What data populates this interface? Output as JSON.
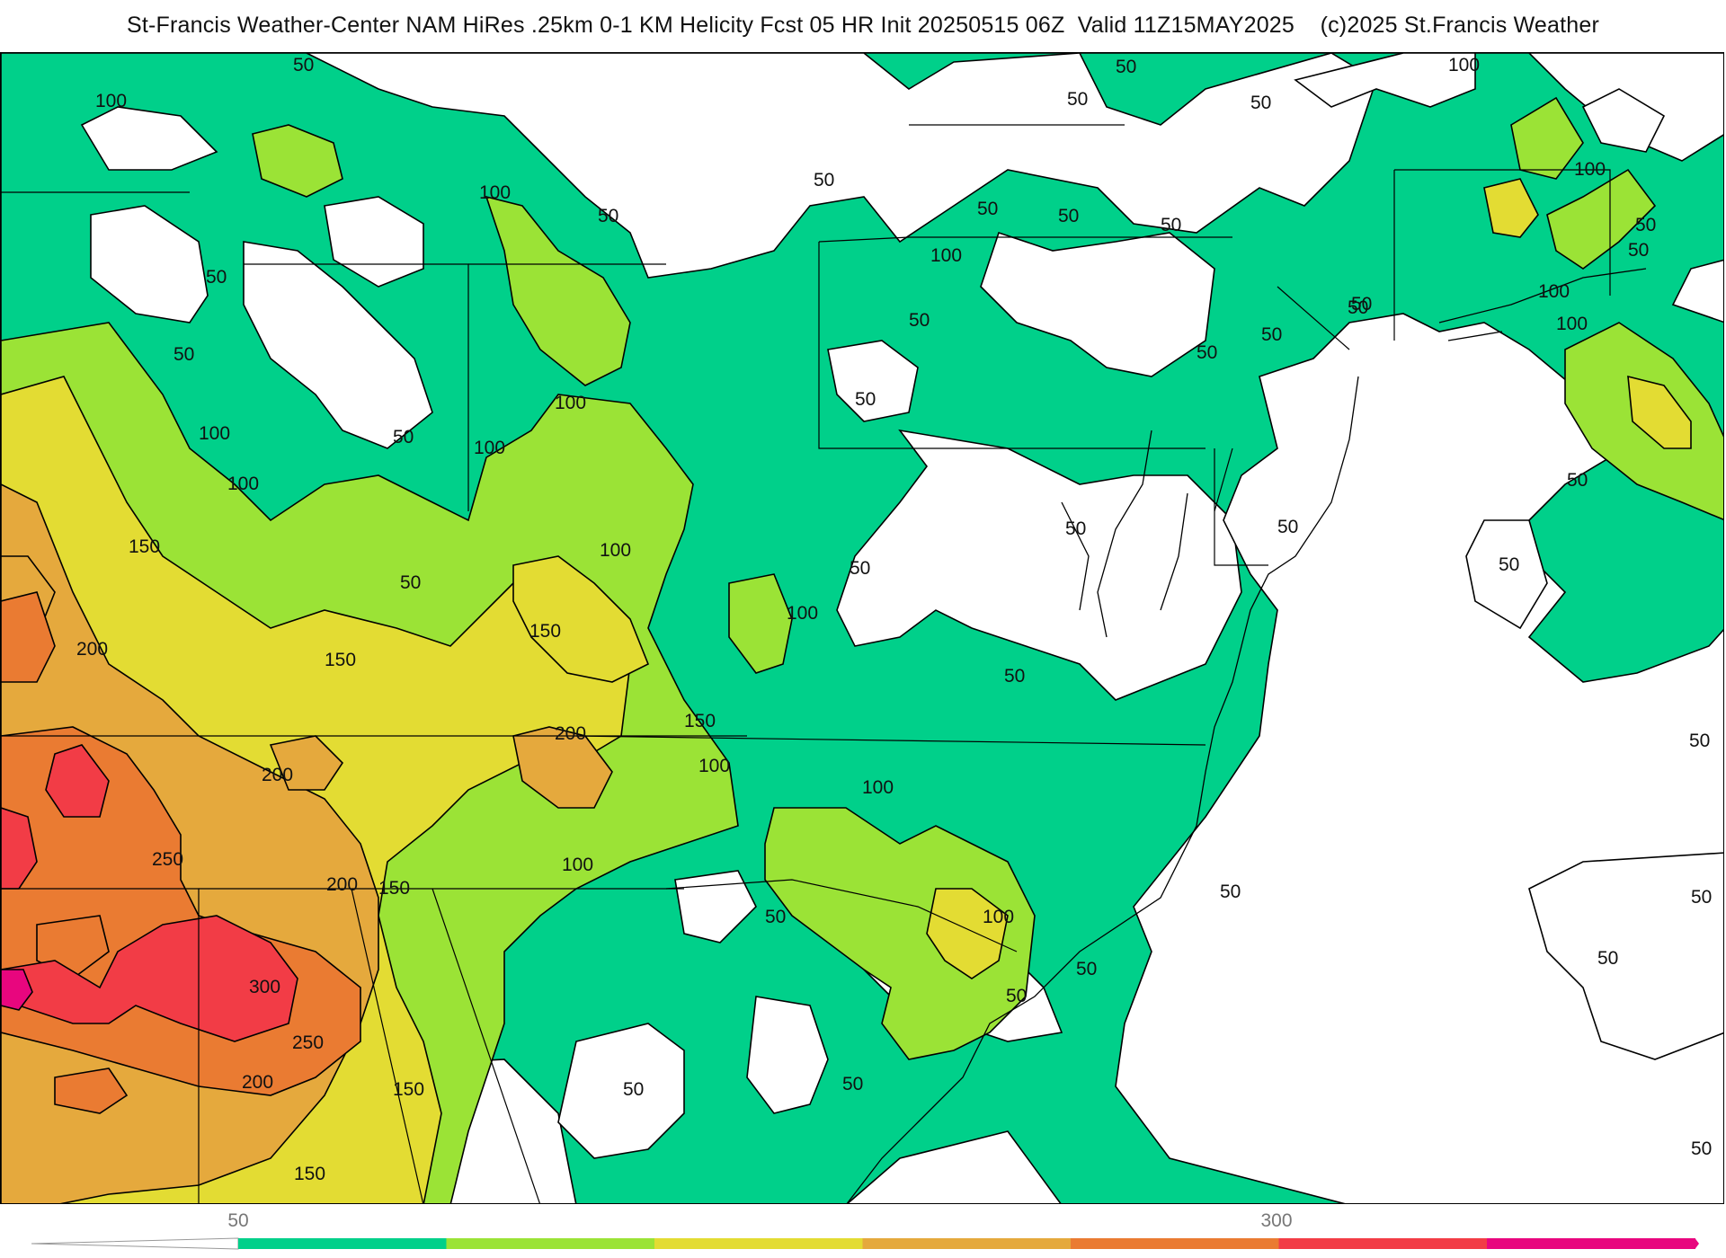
{
  "title": "St-Francis Weather-Center NAM HiRes .25km 0-1 KM Helicity Fcst 05 HR Init 20250515 06Z  Valid 11Z15MAY2025    (c)2025 St.Francis Weather",
  "colorbar": {
    "levels": [
      50,
      100,
      150,
      200,
      250,
      300,
      350
    ],
    "colors": [
      "#00d08a",
      "#9be336",
      "#e3dc33",
      "#e5a93d",
      "#ea7b32",
      "#f23c46",
      "#e8067e"
    ],
    "tick_labels": [
      "50",
      "300"
    ]
  },
  "contour_labels": [
    "50",
    "100",
    "50",
    "50",
    "100",
    "100",
    "100",
    "150",
    "200",
    "250",
    "300",
    "250",
    "200",
    "150",
    "150",
    "150",
    "150",
    "100",
    "50",
    "100",
    "100",
    "100",
    "150",
    "200",
    "150",
    "100",
    "100",
    "100",
    "50",
    "50",
    "50",
    "50",
    "50",
    "50",
    "50",
    "50",
    "50",
    "50",
    "50",
    "50",
    "100",
    "50",
    "50",
    "50",
    "50",
    "100",
    "100",
    "100",
    "50",
    "50",
    "50",
    "50",
    "100",
    "50",
    "50",
    "50",
    "50",
    "50",
    "50",
    "50",
    "50",
    "50",
    "50",
    "50",
    "50",
    "200",
    "200",
    "50",
    "100"
  ]
}
